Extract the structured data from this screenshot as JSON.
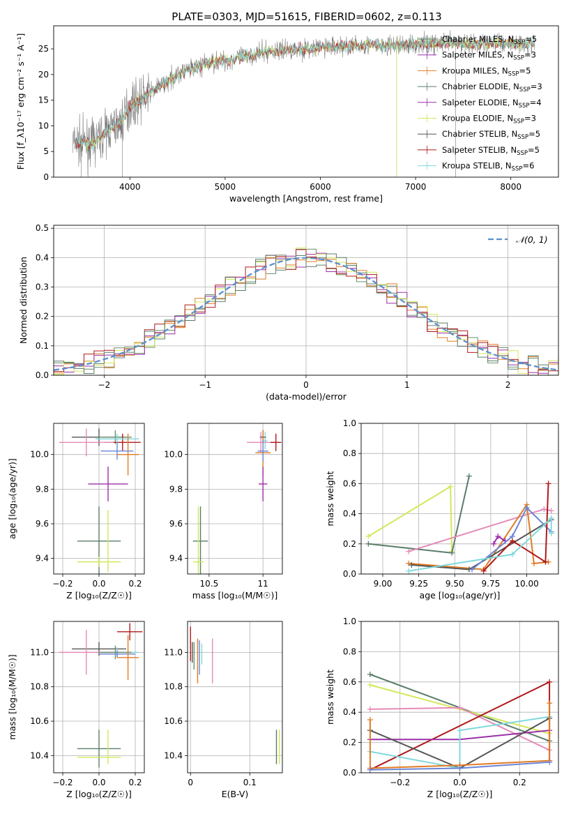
{
  "title": "PLATE=0303, MJD=51615, FIBERID=0602, z=0.113",
  "colors": {
    "Chabrier MILES": "#6b8e6b",
    "Salpeter MILES": "#9b30b0",
    "Kroupa MILES": "#e07b25",
    "Chabrier ELODIE": "#5a7d68",
    "Salpeter ELODIE": "#9c2fa8",
    "Kroupa ELODIE": "#d2e85a",
    "Chabrier STELIB": "#555555",
    "Salpeter STELIB": "#b01a1a",
    "Kroupa STELIB": "#80d8dc",
    "pink": "#e58ab8",
    "blue": "#6a86d8",
    "gauss": "#5b8fd0"
  },
  "chart_data": [
    {
      "type": "line",
      "name": "spectrum",
      "xlabel": "wavelength [Angstrom, rest frame]",
      "ylabel": "Flux [f_λ10⁻¹⁷ erg cm⁻² s⁻¹ A⁻¹]",
      "xlim": [
        3200,
        8500
      ],
      "ylim": [
        0,
        29.5
      ],
      "xticks": [
        4000,
        5000,
        6000,
        7000,
        8000
      ],
      "yticks": [
        0,
        5,
        10,
        15,
        20,
        25
      ],
      "continuum": {
        "x": [
          3400,
          3600,
          3800,
          3900,
          4000,
          4100,
          4300,
          4500,
          4700,
          4900,
          5100,
          5300,
          5500,
          5700,
          5900,
          6100,
          6300,
          6500,
          6700,
          6900,
          7100,
          7300,
          7500,
          7700,
          7900,
          8100,
          8250
        ],
        "y": [
          6.8,
          6.5,
          9.5,
          10.5,
          14.0,
          15.0,
          17.5,
          20.0,
          21.5,
          22.5,
          23.0,
          24.0,
          24.5,
          25.0,
          25.0,
          25.5,
          25.5,
          25.8,
          25.5,
          25.8,
          26.0,
          26.2,
          26.0,
          26.0,
          26.2,
          26.0,
          26.0
        ]
      },
      "legend_position": "top-right",
      "legend": [
        {
          "label": "Chabrier MILES, N",
          "sub": "SSP",
          "val": "=5",
          "key": "Chabrier MILES"
        },
        {
          "label": "Salpeter MILES, N",
          "sub": "SSP",
          "val": "=3",
          "key": "Salpeter MILES"
        },
        {
          "label": "Kroupa MILES, N",
          "sub": "SSP",
          "val": "=5",
          "key": "Kroupa MILES"
        },
        {
          "label": "Chabrier ELODIE, N",
          "sub": "SSP",
          "val": "=3",
          "key": "Chabrier ELODIE"
        },
        {
          "label": "Salpeter ELODIE, N",
          "sub": "SSP",
          "val": "=4",
          "key": "Salpeter ELODIE"
        },
        {
          "label": "Kroupa ELODIE, N",
          "sub": "SSP",
          "val": "=3",
          "key": "Kroupa ELODIE"
        },
        {
          "label": "Chabrier STELIB, N",
          "sub": "SSP",
          "val": "=5",
          "key": "Chabrier STELIB"
        },
        {
          "label": "Salpeter STELIB, N",
          "sub": "SSP",
          "val": "=5",
          "key": "Salpeter STELIB"
        },
        {
          "label": "Kroupa STELIB, N",
          "sub": "SSP",
          "val": "=6",
          "key": "Kroupa STELIB"
        }
      ]
    },
    {
      "type": "histogram",
      "name": "residuals",
      "xlabel": "(data-model)/error",
      "ylabel": "Normed distribution",
      "xlim": [
        -2.5,
        2.5
      ],
      "ylim": [
        0,
        0.51
      ],
      "xticks": [
        -2,
        -1,
        0,
        1,
        2
      ],
      "xticklabels": [
        "−2",
        "−1",
        "0",
        "1",
        "2"
      ],
      "yticks": [
        0.0,
        0.1,
        0.2,
        0.3,
        0.4,
        0.5
      ],
      "bin_width": 0.1,
      "gaussian_label": "𝒩(0, 1)",
      "grid": true
    },
    {
      "type": "errorbar",
      "name": "age-vs-Z",
      "xlabel": "Z [log₁₀(Z/Z☉)]",
      "ylabel": "age  [log₁₀(age/yr)]",
      "xlim": [
        -0.25,
        0.25
      ],
      "ylim": [
        9.31,
        10.18
      ],
      "xticks": [
        -0.2,
        0.0,
        0.2
      ],
      "xticklabels": [
        "−0.2",
        "0.0",
        "0.2"
      ],
      "yticks": [
        9.4,
        9.6,
        9.8,
        10.0
      ],
      "points": [
        {
          "x": 0.0,
          "y": 10.1,
          "xerr": 0.15,
          "yerr": 0.05,
          "key": "Chabrier STELIB"
        },
        {
          "x": 0.09,
          "y": 10.1,
          "xerr": 0.09,
          "yerr": 0.04,
          "key": "Chabrier MILES"
        },
        {
          "x": 0.13,
          "y": 10.07,
          "xerr": 0.1,
          "yerr": 0.05,
          "key": "Salpeter STELIB"
        },
        {
          "x": -0.07,
          "y": 10.07,
          "xerr": 0.15,
          "yerr": 0.08,
          "key": "pink"
        },
        {
          "x": 0.1,
          "y": 10.09,
          "xerr": 0.12,
          "yerr": 0.03,
          "key": "Kroupa STELIB"
        },
        {
          "x": 0.16,
          "y": 10.0,
          "xerr": 0.06,
          "yerr": 0.12,
          "key": "Kroupa MILES"
        },
        {
          "x": 0.1,
          "y": 10.02,
          "xerr": 0.09,
          "yerr": 0.05,
          "key": "blue"
        },
        {
          "x": 0.05,
          "y": 9.83,
          "xerr": 0.11,
          "yerr": 0.1,
          "key": "Salpeter ELODIE"
        },
        {
          "x": 0.0,
          "y": 9.5,
          "xerr": 0.12,
          "yerr": 0.2,
          "key": "Chabrier ELODIE"
        },
        {
          "x": 0.0,
          "y": 9.38,
          "xerr": 0.12,
          "yerr": 0.03,
          "key": "Kroupa ELODIE"
        },
        {
          "x": 0.05,
          "y": 9.5,
          "xerr": 0.0,
          "yerr": 0.18,
          "key": "Kroupa ELODIE"
        }
      ]
    },
    {
      "type": "errorbar",
      "name": "age-vs-mass",
      "xlabel": "mass [log₁₀(M/M☉)]",
      "ylabel": "",
      "xlim": [
        10.3,
        11.18
      ],
      "ylim": [
        9.31,
        10.18
      ],
      "xticks": [
        10.5,
        11.0
      ],
      "yticks": [
        9.4,
        9.6,
        9.8,
        10.0
      ],
      "points": [
        {
          "x": 11.0,
          "y": 10.1,
          "xerr": 0.03,
          "yerr": 0.04,
          "key": "Chabrier MILES"
        },
        {
          "x": 11.02,
          "y": 10.08,
          "xerr": 0.02,
          "yerr": 0.05,
          "key": "Kroupa STELIB"
        },
        {
          "x": 10.98,
          "y": 10.07,
          "xerr": 0.13,
          "yerr": 0.06,
          "key": "pink"
        },
        {
          "x": 11.12,
          "y": 10.07,
          "xerr": 0.05,
          "yerr": 0.05,
          "key": "Salpeter STELIB"
        },
        {
          "x": 11.0,
          "y": 10.1,
          "xerr": 0.02,
          "yerr": 0.04,
          "key": "Chabrier STELIB"
        },
        {
          "x": 11.0,
          "y": 10.01,
          "xerr": 0.07,
          "yerr": 0.13,
          "key": "Kroupa MILES"
        },
        {
          "x": 11.0,
          "y": 10.02,
          "xerr": 0.05,
          "yerr": 0.06,
          "key": "blue"
        },
        {
          "x": 11.0,
          "y": 9.83,
          "xerr": 0.04,
          "yerr": 0.1,
          "key": "Salpeter ELODIE"
        },
        {
          "x": 10.42,
          "y": 9.5,
          "xerr": 0.07,
          "yerr": 0.2,
          "key": "Chabrier ELODIE"
        },
        {
          "x": 10.4,
          "y": 9.38,
          "xerr": 0.05,
          "yerr": 0.03,
          "key": "Kroupa ELODIE"
        },
        {
          "x": 10.4,
          "y": 9.5,
          "xerr": 0.0,
          "yerr": 0.2,
          "key": "Kroupa ELODIE"
        }
      ]
    },
    {
      "type": "line",
      "name": "mass-weight-vs-age",
      "xlabel": "age  [log₁₀(age/yr)]",
      "ylabel": "mass weight",
      "xlim": [
        8.85,
        10.22
      ],
      "ylim": [
        0,
        1.0
      ],
      "xticks": [
        9.0,
        9.25,
        9.5,
        9.75,
        10.0
      ],
      "xticklabels": [
        "9.00",
        "9.25",
        "9.50",
        "9.75",
        "10.00"
      ],
      "yticks": [
        0.0,
        0.2,
        0.4,
        0.6,
        0.8,
        1.0
      ],
      "grid": true,
      "series": [
        {
          "key": "Kroupa ELODIE",
          "x": [
            8.9,
            9.47,
            9.48
          ],
          "y": [
            0.25,
            0.58,
            0.15
          ]
        },
        {
          "key": "Chabrier ELODIE",
          "x": [
            8.9,
            9.48,
            9.6
          ],
          "y": [
            0.2,
            0.14,
            0.65
          ]
        },
        {
          "key": "pink",
          "x": [
            9.18,
            10.12,
            10.17
          ],
          "y": [
            0.15,
            0.43,
            0.42
          ]
        },
        {
          "key": "Kroupa MILES",
          "x": [
            9.18,
            9.7,
            10.0,
            10.05,
            10.15
          ],
          "y": [
            0.07,
            0.03,
            0.46,
            0.07,
            0.08
          ]
        },
        {
          "key": "Chabrier STELIB",
          "x": [
            9.2,
            9.6,
            10.17
          ],
          "y": [
            0.06,
            0.03,
            0.36
          ]
        },
        {
          "key": "Salpeter ELODIE",
          "x": [
            9.77,
            9.8,
            9.85
          ],
          "y": [
            0.2,
            0.25,
            0.22
          ]
        },
        {
          "key": "blue",
          "x": [
            9.62,
            9.9,
            10.0,
            10.17
          ],
          "y": [
            0.03,
            0.25,
            0.44,
            0.28
          ]
        },
        {
          "key": "Salpeter STELIB",
          "x": [
            9.7,
            9.9,
            10.13,
            10.15
          ],
          "y": [
            0.02,
            0.22,
            0.08,
            0.6
          ]
        },
        {
          "key": "Kroupa STELIB",
          "x": [
            9.18,
            9.9,
            10.17,
            10.17
          ],
          "y": [
            0.02,
            0.13,
            0.37,
            0.27
          ]
        }
      ]
    },
    {
      "type": "errorbar",
      "name": "mass-vs-Z",
      "xlabel": "Z [log₁₀(Z/Z☉)]",
      "ylabel": "mass [log₁₀(M/M☉)]",
      "xlim": [
        -0.25,
        0.25
      ],
      "ylim": [
        10.3,
        11.18
      ],
      "xticks": [
        -0.2,
        0.0,
        0.2
      ],
      "xticklabels": [
        "−0.2",
        "0.0",
        "0.2"
      ],
      "yticks": [
        10.4,
        10.6,
        10.8,
        11.0
      ],
      "points": [
        {
          "x": 0.17,
          "y": 11.12,
          "xerr": 0.07,
          "yerr": 0.05,
          "key": "Salpeter STELIB"
        },
        {
          "x": 0.0,
          "y": 11.02,
          "xerr": 0.15,
          "yerr": 0.04,
          "key": "Chabrier STELIB"
        },
        {
          "x": 0.1,
          "y": 11.0,
          "xerr": 0.12,
          "yerr": 0.03,
          "key": "Kroupa STELIB"
        },
        {
          "x": -0.07,
          "y": 11.0,
          "xerr": 0.15,
          "yerr": 0.13,
          "key": "pink"
        },
        {
          "x": 0.09,
          "y": 11.0,
          "xerr": 0.09,
          "yerr": 0.04,
          "key": "Chabrier MILES"
        },
        {
          "x": 0.1,
          "y": 10.99,
          "xerr": 0.1,
          "yerr": 0.02,
          "key": "blue"
        },
        {
          "x": 0.16,
          "y": 10.97,
          "xerr": 0.06,
          "yerr": 0.13,
          "key": "Kroupa MILES"
        },
        {
          "x": 0.0,
          "y": 10.44,
          "xerr": 0.12,
          "yerr": 0.11,
          "key": "Chabrier ELODIE"
        },
        {
          "x": 0.0,
          "y": 10.39,
          "xerr": 0.12,
          "yerr": 0.0,
          "key": "Kroupa ELODIE"
        },
        {
          "x": 0.05,
          "y": 10.45,
          "xerr": 0.0,
          "yerr": 0.1,
          "key": "Kroupa ELODIE"
        }
      ]
    },
    {
      "type": "errorbar",
      "name": "mass-vs-ebv",
      "xlabel": "E(B-V)",
      "ylabel": "",
      "xlim": [
        -0.005,
        0.155
      ],
      "ylim": [
        10.3,
        11.18
      ],
      "xticks": [
        0.0,
        0.1
      ],
      "yticks": [
        10.4,
        10.6,
        10.8,
        11.0
      ],
      "points": [
        {
          "x": 0.0,
          "y": 11.05,
          "xerr": 0.0,
          "yerr": 0.1,
          "key": "Salpeter STELIB"
        },
        {
          "x": 0.003,
          "y": 11.0,
          "xerr": 0.0,
          "yerr": 0.06,
          "key": "Chabrier STELIB"
        },
        {
          "x": 0.006,
          "y": 10.98,
          "xerr": 0.0,
          "yerr": 0.08,
          "key": "Chabrier MILES"
        },
        {
          "x": 0.012,
          "y": 10.95,
          "xerr": 0.0,
          "yerr": 0.13,
          "key": "Kroupa MILES"
        },
        {
          "x": 0.015,
          "y": 10.97,
          "xerr": 0.0,
          "yerr": 0.1,
          "key": "blue"
        },
        {
          "x": 0.019,
          "y": 10.99,
          "xerr": 0.0,
          "yerr": 0.06,
          "key": "Kroupa STELIB"
        },
        {
          "x": 0.037,
          "y": 10.95,
          "xerr": 0.0,
          "yerr": 0.13,
          "key": "pink"
        },
        {
          "x": 0.145,
          "y": 10.45,
          "xerr": 0.0,
          "yerr": 0.1,
          "key": "Chabrier ELODIE"
        },
        {
          "x": 0.15,
          "y": 10.45,
          "xerr": 0.0,
          "yerr": 0.1,
          "key": "Kroupa ELODIE"
        }
      ]
    },
    {
      "type": "line",
      "name": "mass-weight-vs-Z",
      "xlabel": "Z [log₁₀(Z/Z☉)]",
      "ylabel": "mass weight",
      "xlim": [
        -0.33,
        0.33
      ],
      "ylim": [
        0,
        1.0
      ],
      "xticks": [
        -0.2,
        0.0,
        0.2
      ],
      "xticklabels": [
        "−0.2",
        "0.0",
        "0.2"
      ],
      "yticks": [
        0.0,
        0.2,
        0.4,
        0.6,
        0.8,
        1.0
      ],
      "grid": true,
      "series": [
        {
          "key": "Chabrier ELODIE",
          "x": [
            -0.3,
            0.3
          ],
          "y": [
            0.65,
            0.21
          ]
        },
        {
          "key": "Kroupa ELODIE",
          "x": [
            -0.3,
            0.3
          ],
          "y": [
            0.58,
            0.26
          ]
        },
        {
          "key": "pink",
          "x": [
            -0.3,
            0.0,
            0.3
          ],
          "y": [
            0.42,
            0.43,
            0.15
          ]
        },
        {
          "key": "Salpeter STELIB",
          "x": [
            -0.3,
            0.3,
            0.3
          ],
          "y": [
            0.02,
            0.6,
            0.08
          ]
        },
        {
          "key": "Salpeter ELODIE",
          "x": [
            -0.3,
            0.0,
            0.3
          ],
          "y": [
            0.22,
            0.22,
            0.28
          ]
        },
        {
          "key": "Chabrier STELIB",
          "x": [
            -0.3,
            0.0,
            0.3
          ],
          "y": [
            0.28,
            0.03,
            0.36
          ]
        },
        {
          "key": "Kroupa STELIB",
          "x": [
            -0.3,
            0.0,
            0.0,
            0.3
          ],
          "y": [
            0.14,
            0.03,
            0.28,
            0.37
          ]
        },
        {
          "key": "Kroupa MILES",
          "x": [
            -0.3,
            -0.3,
            0.0,
            0.3,
            0.3
          ],
          "y": [
            0.35,
            0.03,
            0.05,
            0.08,
            0.46
          ]
        },
        {
          "key": "blue",
          "x": [
            -0.3,
            0.0,
            0.3
          ],
          "y": [
            0.02,
            0.03,
            0.07
          ]
        }
      ]
    }
  ]
}
